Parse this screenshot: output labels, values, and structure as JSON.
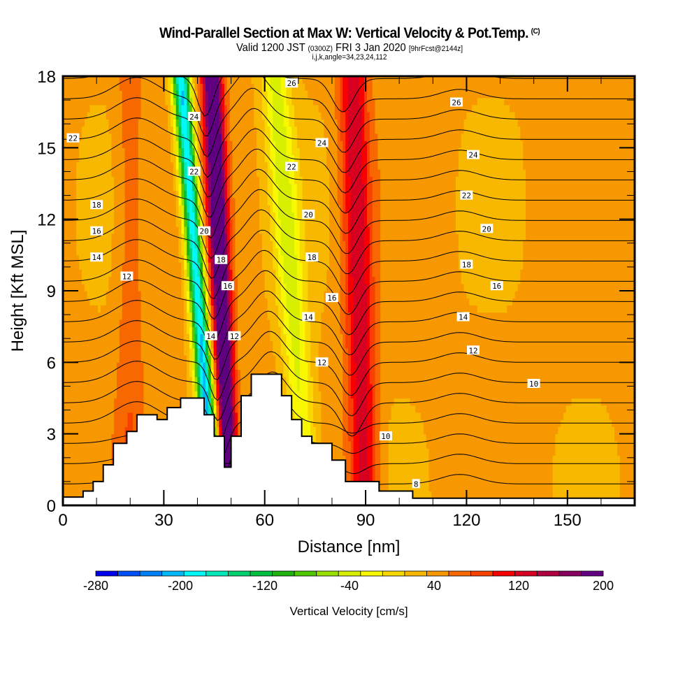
{
  "header": {
    "title": "Wind-Parallel Section at Max W: Vertical Velocity & Pot.Temp.",
    "title_mark": "(C)",
    "valid_prefix": "Valid 1200 JST",
    "valid_utc": "(0300Z)",
    "valid_date": "FRI 3 Jan 2020",
    "forecast": "[9hrFcst@2144z]",
    "grid_info": "i,j,k,angle=34,23,24,112"
  },
  "chart_data": {
    "type": "heatmap",
    "title": "Wind-Parallel Section at Max W: Vertical Velocity & Pot.Temp.",
    "xlabel": "Distance [nm]",
    "ylabel": "Height [Kft MSL]",
    "xlim": [
      0,
      170
    ],
    "ylim": [
      0,
      18
    ],
    "x_ticks": [
      "0",
      "30",
      "60",
      "90",
      "120",
      "150"
    ],
    "x_tick_values": [
      0,
      30,
      60,
      90,
      120,
      150
    ],
    "y_ticks": [
      "0",
      "3",
      "6",
      "9",
      "12",
      "15",
      "18"
    ],
    "y_tick_values": [
      0,
      3,
      6,
      9,
      12,
      15,
      18
    ],
    "colorbar": {
      "title": "Vertical Velocity [cm/s]",
      "min": -280,
      "max": 200,
      "step": 20,
      "tick_labels": [
        "-280",
        "-200",
        "-120",
        "-40",
        "40",
        "120",
        "200"
      ],
      "tick_values": [
        -280,
        -200,
        -120,
        -40,
        40,
        120,
        200
      ],
      "colors": [
        "#0000f0",
        "#0050f8",
        "#0080f8",
        "#00b8f8",
        "#00f8f8",
        "#00e8b8",
        "#00d070",
        "#00c040",
        "#20b010",
        "#50c800",
        "#98e000",
        "#d8f000",
        "#f8f800",
        "#f8d800",
        "#f8b800",
        "#f89800",
        "#f86800",
        "#f84000",
        "#f80000",
        "#d80020",
        "#b00040",
        "#880060",
        "#600080"
      ]
    },
    "velocity_bands": [
      {
        "name": "downdraft-1",
        "x_center": 40,
        "tilt_nm_per_kft": -0.55,
        "peak": -230
      },
      {
        "name": "updraft-1",
        "x_center": 47,
        "tilt_nm_per_kft": -0.3,
        "peak": 190
      },
      {
        "name": "downdraft-2",
        "x_center": 68,
        "tilt_nm_per_kft": -0.55,
        "peak": -70
      },
      {
        "name": "updraft-2",
        "x_center": 88,
        "tilt_nm_per_kft": -0.2,
        "peak": 90
      },
      {
        "name": "updraft-weak",
        "x_center": 20,
        "tilt_nm_per_kft": 0,
        "peak": 30
      }
    ],
    "theta_contour_labels": [
      {
        "text": "26",
        "x": 68,
        "y": 17.7
      },
      {
        "text": "26",
        "x": 117,
        "y": 16.9
      },
      {
        "text": "24",
        "x": 39,
        "y": 16.3
      },
      {
        "text": "24",
        "x": 77,
        "y": 15.2
      },
      {
        "text": "24",
        "x": 122,
        "y": 14.7
      },
      {
        "text": "22",
        "x": 3,
        "y": 15.4
      },
      {
        "text": "22",
        "x": 39,
        "y": 14.0
      },
      {
        "text": "22",
        "x": 68,
        "y": 14.2
      },
      {
        "text": "22",
        "x": 120,
        "y": 13.0
      },
      {
        "text": "20",
        "x": 42,
        "y": 11.5
      },
      {
        "text": "20",
        "x": 73,
        "y": 12.2
      },
      {
        "text": "20",
        "x": 126,
        "y": 11.6
      },
      {
        "text": "18",
        "x": 10,
        "y": 12.6
      },
      {
        "text": "18",
        "x": 47,
        "y": 10.3
      },
      {
        "text": "18",
        "x": 74,
        "y": 10.4
      },
      {
        "text": "18",
        "x": 120,
        "y": 10.1
      },
      {
        "text": "16",
        "x": 10,
        "y": 11.5
      },
      {
        "text": "16",
        "x": 49,
        "y": 9.2
      },
      {
        "text": "16",
        "x": 80,
        "y": 8.7
      },
      {
        "text": "16",
        "x": 129,
        "y": 9.2
      },
      {
        "text": "14",
        "x": 10,
        "y": 10.4
      },
      {
        "text": "14",
        "x": 44,
        "y": 7.1
      },
      {
        "text": "14",
        "x": 73,
        "y": 7.9
      },
      {
        "text": "14",
        "x": 119,
        "y": 7.9
      },
      {
        "text": "12",
        "x": 19,
        "y": 9.6
      },
      {
        "text": "12",
        "x": 51,
        "y": 7.1
      },
      {
        "text": "12",
        "x": 77,
        "y": 6.0
      },
      {
        "text": "12",
        "x": 122,
        "y": 6.5
      },
      {
        "text": "10",
        "x": 140,
        "y": 5.1
      },
      {
        "text": "10",
        "x": 96,
        "y": 2.9
      },
      {
        "text": "8",
        "x": 105,
        "y": 0.9
      }
    ],
    "terrain_steps": [
      [
        0,
        6,
        0.35
      ],
      [
        6,
        9,
        0.6
      ],
      [
        9,
        12,
        1.0
      ],
      [
        12,
        15,
        1.7
      ],
      [
        15,
        19,
        2.6
      ],
      [
        19,
        22,
        3.1
      ],
      [
        22,
        28,
        3.8
      ],
      [
        28,
        31,
        3.6
      ],
      [
        31,
        35,
        4.1
      ],
      [
        35,
        42,
        4.5
      ],
      [
        42,
        45,
        3.8
      ],
      [
        45,
        48,
        2.9
      ],
      [
        48,
        50,
        1.6
      ],
      [
        50,
        53,
        2.9
      ],
      [
        53,
        56,
        4.6
      ],
      [
        56,
        65,
        5.5
      ],
      [
        65,
        68,
        4.6
      ],
      [
        68,
        71,
        3.6
      ],
      [
        71,
        74,
        2.9
      ],
      [
        74,
        80,
        2.6
      ],
      [
        80,
        84,
        1.9
      ],
      [
        84,
        94,
        1.0
      ],
      [
        94,
        104,
        0.6
      ],
      [
        104,
        170,
        0.3
      ]
    ]
  }
}
